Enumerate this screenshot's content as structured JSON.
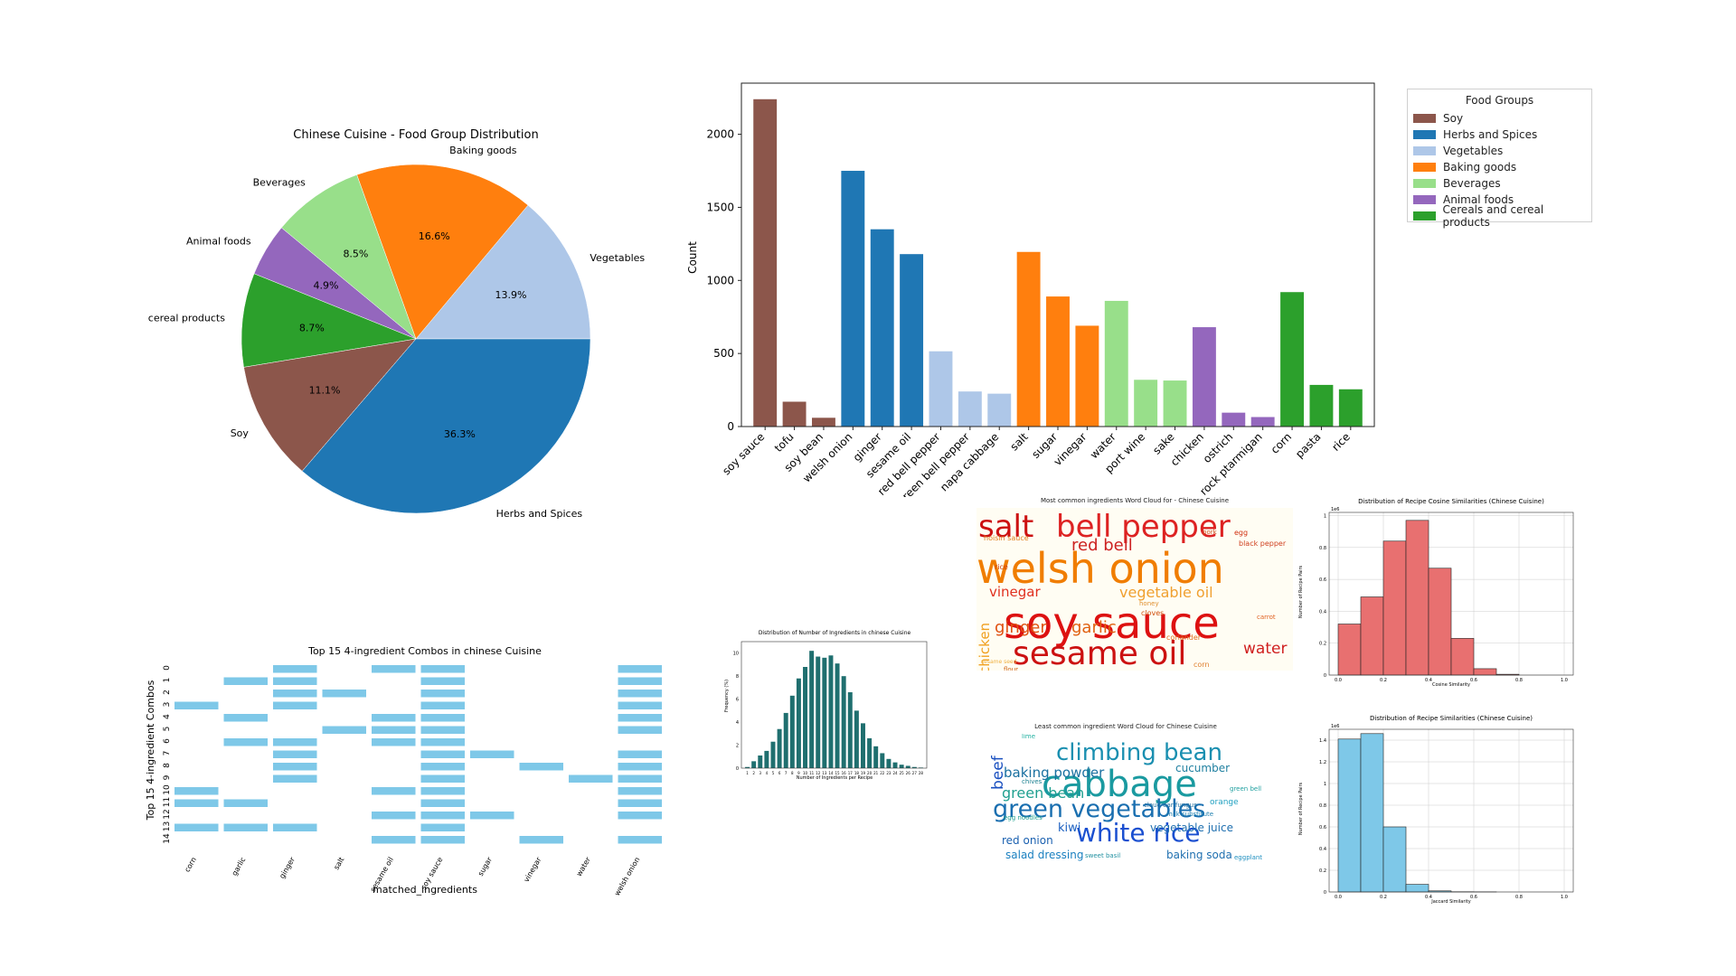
{
  "colors": {
    "Soy": "#8c564b",
    "Herbs and Spices": "#1f77b4",
    "Vegetables": "#aec7e8",
    "Baking goods": "#ff7f0e",
    "Beverages": "#98df8a",
    "Animal foods": "#9467bd",
    "Cereals and cereal products": "#2ca02c",
    "teal": "#1f6f6f",
    "salmon": "#e87070",
    "sky": "#7ec8e8"
  },
  "pie": {
    "title": "Chinese Cuisine - Food Group Distribution",
    "slices": [
      {
        "label": "Vegetables",
        "pct": 13.9
      },
      {
        "label": "Baking goods",
        "pct": 16.6
      },
      {
        "label": "Beverages",
        "pct": 8.5
      },
      {
        "label": "Animal foods",
        "pct": 4.9
      },
      {
        "label": "Cereals and cereal products",
        "pct": 8.7
      },
      {
        "label": "Soy",
        "pct": 11.1
      },
      {
        "label": "Herbs and Spices",
        "pct": 36.3
      }
    ]
  },
  "bars": {
    "ylabel": "Count",
    "ylim": [
      0,
      2350
    ],
    "yticks": [
      0,
      500,
      1000,
      1500,
      2000
    ],
    "items": [
      {
        "label": "soy sauce",
        "value": 2240,
        "group": "Soy"
      },
      {
        "label": "tofu",
        "value": 170,
        "group": "Soy"
      },
      {
        "label": "soy bean",
        "value": 60,
        "group": "Soy"
      },
      {
        "label": "welsh onion",
        "value": 1750,
        "group": "Herbs and Spices"
      },
      {
        "label": "ginger",
        "value": 1350,
        "group": "Herbs and Spices"
      },
      {
        "label": "sesame oil",
        "value": 1180,
        "group": "Herbs and Spices"
      },
      {
        "label": "red bell pepper",
        "value": 515,
        "group": "Vegetables"
      },
      {
        "label": "green bell pepper",
        "value": 240,
        "group": "Vegetables"
      },
      {
        "label": "napa cabbage",
        "value": 225,
        "group": "Vegetables"
      },
      {
        "label": "salt",
        "value": 1195,
        "group": "Baking goods"
      },
      {
        "label": "sugar",
        "value": 890,
        "group": "Baking goods"
      },
      {
        "label": "vinegar",
        "value": 690,
        "group": "Baking goods"
      },
      {
        "label": "water",
        "value": 860,
        "group": "Beverages"
      },
      {
        "label": "port wine",
        "value": 320,
        "group": "Beverages"
      },
      {
        "label": "sake",
        "value": 315,
        "group": "Beverages"
      },
      {
        "label": "chicken",
        "value": 680,
        "group": "Animal foods"
      },
      {
        "label": "ostrich",
        "value": 95,
        "group": "Animal foods"
      },
      {
        "label": "rock ptarmigan",
        "value": 65,
        "group": "Animal foods"
      },
      {
        "label": "corn",
        "value": 920,
        "group": "Cereals and cereal products"
      },
      {
        "label": "pasta",
        "value": 285,
        "group": "Cereals and cereal products"
      },
      {
        "label": "rice",
        "value": 255,
        "group": "Cereals and cereal products"
      }
    ]
  },
  "legend": {
    "title": "Food Groups",
    "items": [
      "Soy",
      "Herbs and Spices",
      "Vegetables",
      "Baking goods",
      "Beverages",
      "Animal foods",
      "Cereals and cereal products"
    ]
  },
  "combos": {
    "title": "Top 15 4-ingredient Combos in chinese Cuisine",
    "xlabel": "matched_ingredients",
    "ylabel": "Top 15 4-ingredient Combos",
    "columns": [
      "corn",
      "garlic",
      "ginger",
      "salt",
      "sesame oil",
      "soy sauce",
      "sugar",
      "vinegar",
      "water",
      "welsh onion"
    ],
    "rows": [
      [
        0,
        0,
        1,
        0,
        1,
        1,
        0,
        0,
        0,
        1
      ],
      [
        0,
        1,
        1,
        0,
        0,
        1,
        0,
        0,
        0,
        1
      ],
      [
        0,
        0,
        1,
        1,
        0,
        1,
        0,
        0,
        0,
        1
      ],
      [
        1,
        0,
        1,
        0,
        0,
        1,
        0,
        0,
        0,
        1
      ],
      [
        0,
        1,
        0,
        0,
        1,
        1,
        0,
        0,
        0,
        1
      ],
      [
        0,
        0,
        0,
        1,
        1,
        1,
        0,
        0,
        0,
        1
      ],
      [
        0,
        1,
        1,
        0,
        1,
        1,
        0,
        0,
        0,
        0
      ],
      [
        0,
        0,
        1,
        0,
        0,
        1,
        1,
        0,
        0,
        1
      ],
      [
        0,
        0,
        1,
        0,
        0,
        1,
        0,
        1,
        0,
        1
      ],
      [
        0,
        0,
        1,
        0,
        0,
        1,
        0,
        0,
        1,
        1
      ],
      [
        1,
        0,
        0,
        0,
        1,
        1,
        0,
        0,
        0,
        1
      ],
      [
        1,
        1,
        0,
        0,
        0,
        1,
        0,
        0,
        0,
        1
      ],
      [
        0,
        0,
        0,
        0,
        1,
        1,
        1,
        0,
        0,
        1
      ],
      [
        1,
        1,
        1,
        0,
        0,
        1,
        0,
        0,
        0,
        0
      ],
      [
        0,
        0,
        0,
        0,
        1,
        1,
        0,
        1,
        0,
        1
      ]
    ]
  },
  "ingredients_hist": {
    "title": "Distribution of Number of Ingredients in chinese Cuisine",
    "xlabel": "Number of Ingredients per Recipe",
    "ylabel": "Frequency (%)",
    "x": [
      1,
      2,
      3,
      4,
      5,
      6,
      7,
      8,
      9,
      10,
      11,
      12,
      13,
      14,
      15,
      16,
      17,
      18,
      19,
      20,
      21,
      22,
      23,
      24,
      25,
      26,
      27,
      28
    ],
    "values": [
      0.1,
      0.6,
      1.1,
      1.5,
      2.3,
      3.4,
      4.8,
      6.3,
      7.8,
      8.8,
      10.2,
      9.7,
      9.6,
      9.8,
      9.1,
      8.0,
      6.6,
      5.0,
      3.9,
      2.6,
      1.9,
      1.3,
      0.8,
      0.5,
      0.3,
      0.2,
      0.1,
      0.05
    ],
    "ylim": [
      0,
      11
    ],
    "yticks": [
      0,
      2,
      4,
      6,
      8,
      10
    ]
  },
  "wordcloud_most": {
    "title": "Most common ingredients Word Cloud for - Chinese Cuisine",
    "words": [
      {
        "t": "soy sauce",
        "c": "#dd1111"
      },
      {
        "t": "welsh onion",
        "c": "#f07d00"
      },
      {
        "t": "sesame oil",
        "c": "#cc1111"
      },
      {
        "t": "salt",
        "c": "#cc1111"
      },
      {
        "t": "bell pepper",
        "c": "#dd2222"
      },
      {
        "t": "red bell",
        "c": "#cc2222"
      },
      {
        "t": "ginger",
        "c": "#e05010"
      },
      {
        "t": "garlic",
        "c": "#e06010"
      },
      {
        "t": "vinegar",
        "c": "#e03020"
      },
      {
        "t": "vegetable oil",
        "c": "#f0a030"
      },
      {
        "t": "water",
        "c": "#d02020"
      },
      {
        "t": "chicken",
        "c": "#f0a020"
      },
      {
        "t": "hoisin sauce",
        "c": "#e08020"
      },
      {
        "t": "black pepper",
        "c": "#d04020"
      },
      {
        "t": "rice",
        "c": "#d04010"
      },
      {
        "t": "coriander",
        "c": "#e07020"
      },
      {
        "t": "cloves",
        "c": "#d05010"
      },
      {
        "t": "honey",
        "c": "#e09030"
      },
      {
        "t": "flour",
        "c": "#d06010"
      },
      {
        "t": "carrot",
        "c": "#e06020"
      },
      {
        "t": "egg",
        "c": "#d03010"
      },
      {
        "t": "corn",
        "c": "#e08030"
      },
      {
        "t": "sesame seed",
        "c": "#f0b040"
      },
      {
        "t": "pork",
        "c": "#d05020"
      }
    ]
  },
  "cosine_hist": {
    "title": "Distribution of Recipe Cosine Similarities (Chinese Cuisine)",
    "xlabel": "Cosine Similarity",
    "ylabel": "Number of Recipe Pairs",
    "multiplier": "1e6",
    "bins": [
      0.0,
      0.1,
      0.2,
      0.3,
      0.4,
      0.5,
      0.6,
      0.7,
      0.8
    ],
    "values": [
      0.32,
      0.49,
      0.84,
      0.97,
      0.67,
      0.23,
      0.04,
      0.005
    ],
    "ylim": [
      0,
      1.02
    ],
    "yticks": [
      0.0,
      0.2,
      0.4,
      0.6,
      0.8,
      1.0
    ],
    "xticks": [
      0.0,
      0.2,
      0.4,
      0.6,
      0.8,
      1.0
    ]
  },
  "wordcloud_least": {
    "title": "Least common ingredient Word Cloud for Chinese Cuisine",
    "words": [
      {
        "t": "cabbage",
        "c": "#1a9aa0"
      },
      {
        "t": "climbing bean",
        "c": "#1a8fb0"
      },
      {
        "t": "green vegetables",
        "c": "#1a6fb0"
      },
      {
        "t": "white rice",
        "c": "#1a4fd0"
      },
      {
        "t": "green bean",
        "c": "#20a090"
      },
      {
        "t": "beef",
        "c": "#1a50c0"
      },
      {
        "t": "baking powder",
        "c": "#1a70a0"
      },
      {
        "t": "cucumber",
        "c": "#2080a0"
      },
      {
        "t": "kiwi",
        "c": "#1a5fc0"
      },
      {
        "t": "vegetable juice",
        "c": "#2070b0"
      },
      {
        "t": "red onion",
        "c": "#1a60b0"
      },
      {
        "t": "salad dressing",
        "c": "#1a80c0"
      },
      {
        "t": "baking soda",
        "c": "#2070b0"
      },
      {
        "t": "sweet basil",
        "c": "#2090a0"
      },
      {
        "t": "orange",
        "c": "#20a0c0"
      },
      {
        "t": "chives",
        "c": "#1a8090"
      },
      {
        "t": "egg noodles",
        "c": "#20a090"
      },
      {
        "t": "milk substitute",
        "c": "#2080b0"
      },
      {
        "t": "cloud ear fungus",
        "c": "#2070a0"
      },
      {
        "t": "eggplant",
        "c": "#2090c0"
      },
      {
        "t": "green bell",
        "c": "#20a0a0"
      },
      {
        "t": "lime",
        "c": "#20b0a0"
      }
    ]
  },
  "jaccard_hist": {
    "title": "Distribution of Recipe Similarities (Chinese Cuisine)",
    "xlabel": "Jaccard Similarity",
    "ylabel": "Number of Recipe Pairs",
    "multiplier": "1e6",
    "bins": [
      0.0,
      0.1,
      0.2,
      0.3,
      0.4,
      0.5,
      0.6,
      0.7
    ],
    "values": [
      1.41,
      1.46,
      0.6,
      0.07,
      0.01,
      0.002,
      0.001
    ],
    "ylim": [
      0,
      1.5
    ],
    "yticks": [
      0.0,
      0.2,
      0.4,
      0.6,
      0.8,
      1.0,
      1.2,
      1.4
    ],
    "xticks": [
      0.0,
      0.2,
      0.4,
      0.6,
      0.8,
      1.0
    ]
  }
}
